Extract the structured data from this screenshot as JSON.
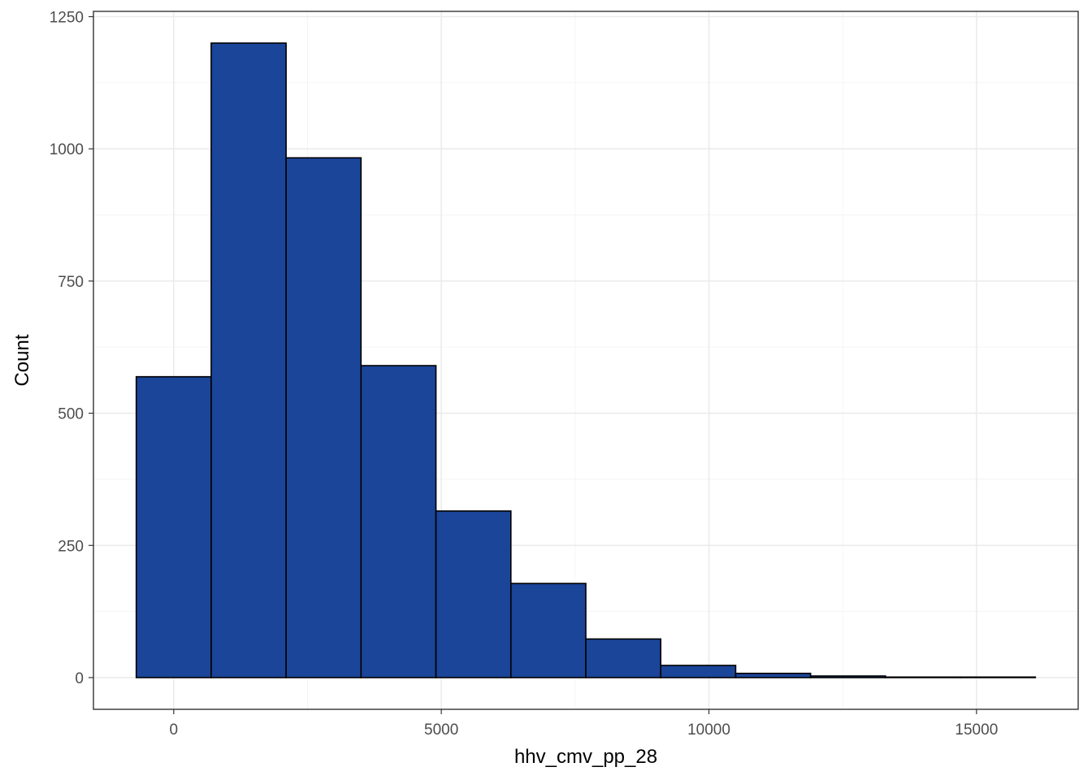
{
  "chart_data": {
    "type": "bar",
    "subtype": "histogram",
    "title": "",
    "xlabel": "hhv_cmv_pp_28",
    "ylabel": "Count",
    "bins": [
      {
        "x_start": -700,
        "x_end": 700,
        "count": 569
      },
      {
        "x_start": 700,
        "x_end": 2100,
        "count": 1200
      },
      {
        "x_start": 2100,
        "x_end": 3500,
        "count": 983
      },
      {
        "x_start": 3500,
        "x_end": 4900,
        "count": 590
      },
      {
        "x_start": 4900,
        "x_end": 6300,
        "count": 315
      },
      {
        "x_start": 6300,
        "x_end": 7700,
        "count": 178
      },
      {
        "x_start": 7700,
        "x_end": 9100,
        "count": 73
      },
      {
        "x_start": 9100,
        "x_end": 10500,
        "count": 23
      },
      {
        "x_start": 10500,
        "x_end": 11900,
        "count": 8
      },
      {
        "x_start": 11900,
        "x_end": 13300,
        "count": 3
      },
      {
        "x_start": 13300,
        "x_end": 14700,
        "count": 1
      },
      {
        "x_start": 14700,
        "x_end": 16100,
        "count": 1
      }
    ],
    "xlim": [
      -1500,
      16900
    ],
    "ylim": [
      -60,
      1260
    ],
    "x_ticks": [
      0,
      5000,
      10000,
      15000
    ],
    "x_tick_labels": [
      "0",
      "5000",
      "10000",
      "15000"
    ],
    "y_ticks": [
      0,
      250,
      500,
      750,
      1000,
      1250
    ],
    "y_tick_labels": [
      "0",
      "250",
      "500",
      "750",
      "1000",
      "1250"
    ],
    "bar_color": "#1a4599",
    "bar_edge_color": "#000000",
    "grid": true,
    "legend": false
  }
}
